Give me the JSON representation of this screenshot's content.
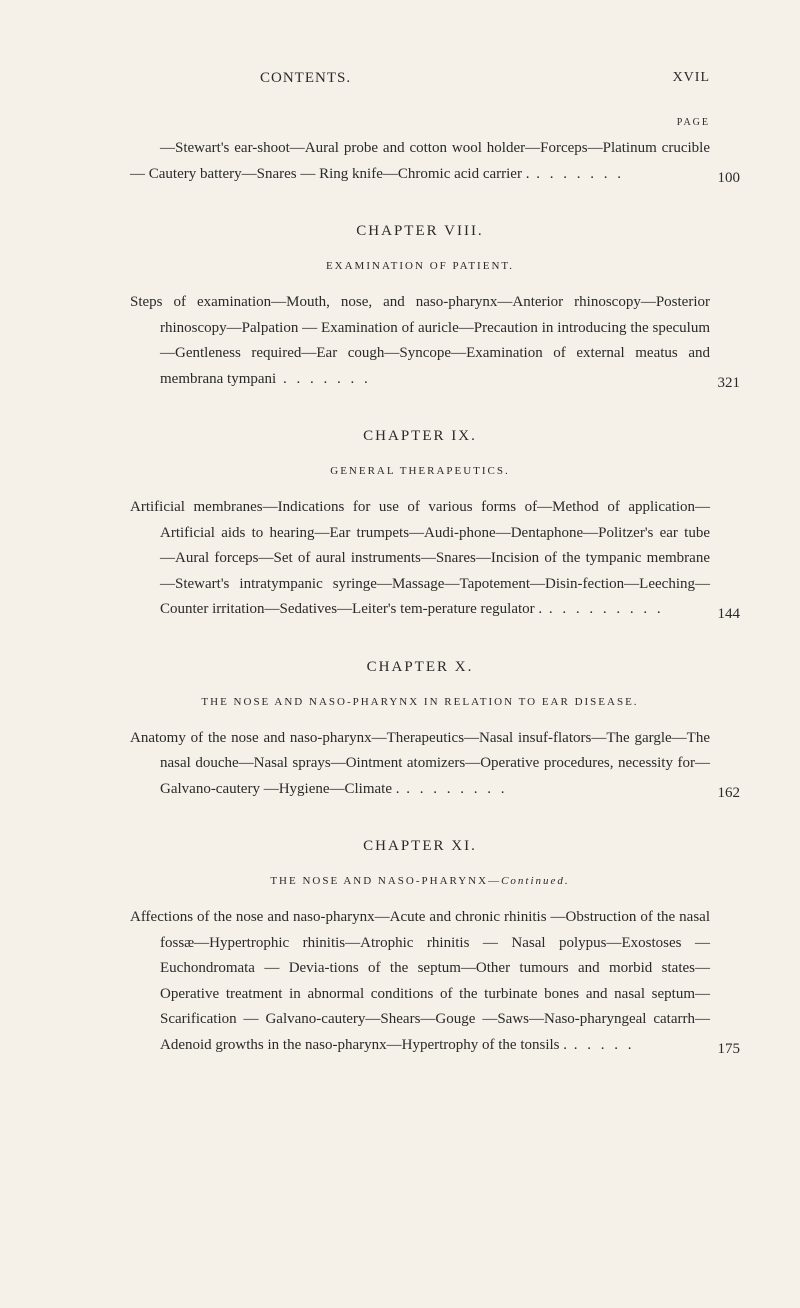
{
  "header": {
    "title": "CONTENTS.",
    "page_roman": "XVIL"
  },
  "page_label": "PAGE",
  "entry1": {
    "text": "—Stewart's ear-shoot—Aural probe and cotton wool holder—Forceps—Platinum crucible — Cautery battery—Snares — Ring knife—Chromic acid carrier .",
    "leader": "   .   .   .   .   .   .   .",
    "page": "100"
  },
  "chapter8": {
    "title": "CHAPTER VIII.",
    "section": "EXAMINATION OF PATIENT."
  },
  "entry2": {
    "text": "Steps of examination—Mouth, nose, and naso-pharynx—Anterior rhinoscopy—Posterior rhinoscopy—Palpation — Examination of auricle—Precaution in introducing the speculum—Gentleness required—Ear cough—Syncope—Examination of external meatus and membrana tympani",
    "leader": "   .   .   .   .   .   .   .",
    "page": "321"
  },
  "chapter9": {
    "title": "CHAPTER IX.",
    "section": "GENERAL THERAPEUTICS."
  },
  "entry3": {
    "text": "Artificial membranes—Indications for use of various forms of—Method of application—Artificial aids to hearing—Ear trumpets—Audi-phone—Dentaphone—Politzer's ear tube—Aural forceps—Set of aural instruments—Snares—Incision of the tympanic membrane—Stewart's intratympanic syringe—Massage—Tapotement—Disin-fection—Leeching—Counter irritation—Sedatives—Leiter's tem-perature regulator .",
    "leader": "   .   .   .   .   .   .   .   .   .",
    "page": "144"
  },
  "chapter10": {
    "title": "CHAPTER X.",
    "section": "THE NOSE AND NASO-PHARYNX IN RELATION TO EAR DISEASE."
  },
  "entry4": {
    "text": "Anatomy of the nose and naso-pharynx—Therapeutics—Nasal insuf-flators—The gargle—The nasal douche—Nasal sprays—Ointment atomizers—Operative procedures, necessity for—Galvano-cautery —Hygiene—Climate .",
    "leader": "   .   .   .   .   .   .   .   .",
    "page": "162"
  },
  "chapter11": {
    "title": "CHAPTER XI.",
    "section_prefix": "THE NOSE AND NASO-PHARYNX—",
    "section_italic": "Continued."
  },
  "entry5": {
    "text": "Affections of the nose and naso-pharynx—Acute and chronic rhinitis —Obstruction of the nasal fossæ—Hypertrophic rhinitis—Atrophic rhinitis — Nasal polypus—Exostoses — Euchondromata — Devia-tions of the septum—Other tumours and morbid states—Operative treatment in abnormal conditions of the turbinate bones and nasal septum—Scarification — Galvano-cautery—Shears—Gouge —Saws—Naso-pharyngeal catarrh—Adenoid growths in the naso-pharynx—Hypertrophy of the tonsils .",
    "leader": "   .   .   .   .   .",
    "page": "175"
  },
  "colors": {
    "background": "#f5f0e8",
    "text": "#2a2a2a"
  }
}
